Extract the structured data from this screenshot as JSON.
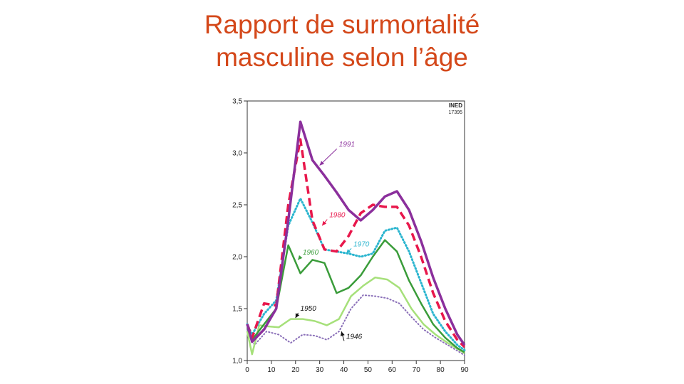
{
  "slide": {
    "title_line1": "Rapport de surmortalité",
    "title_line2": "masculine selon l’âge"
  },
  "colors": {
    "title": "#d4481a",
    "s1991": "#8b2f9c",
    "s1980": "#e8174b",
    "s1970": "#2bb5cf",
    "s1960": "#3a9c3a",
    "s1950": "#a6e07a",
    "s1946": "#8a6fb8"
  },
  "chart_data": {
    "type": "line",
    "stamp_line1": "INED",
    "stamp_line2": "17395",
    "xlim": [
      0,
      90
    ],
    "ylim": [
      1.0,
      3.5
    ],
    "xticks": [
      0,
      10,
      20,
      30,
      40,
      50,
      60,
      70,
      80,
      90
    ],
    "yticks": [
      1.0,
      1.5,
      2.0,
      2.5,
      3.0,
      3.5
    ],
    "ytick_labels": [
      "1,0",
      "1,5",
      "2,0",
      "2,5",
      "3,0",
      "3,5"
    ],
    "grid": false,
    "series": [
      {
        "name": "1991",
        "color": "#8b2f9c",
        "style": "solid",
        "width": 3.5,
        "x": [
          0,
          2,
          7,
          12,
          17,
          22,
          27,
          32,
          37,
          42,
          47,
          52,
          57,
          62,
          67,
          72,
          77,
          82,
          87,
          90
        ],
        "y": [
          1.35,
          1.18,
          1.3,
          1.5,
          2.35,
          3.3,
          2.93,
          2.78,
          2.62,
          2.45,
          2.35,
          2.45,
          2.58,
          2.63,
          2.45,
          2.15,
          1.8,
          1.5,
          1.25,
          1.15
        ]
      },
      {
        "name": "1980",
        "color": "#e8174b",
        "style": "dashed",
        "width": 3.5,
        "x": [
          0,
          2,
          7,
          12,
          17,
          22,
          27,
          32,
          37,
          42,
          47,
          52,
          57,
          62,
          67,
          72,
          77,
          82,
          87,
          90
        ],
        "y": [
          1.35,
          1.22,
          1.55,
          1.53,
          2.5,
          3.13,
          2.35,
          2.07,
          2.05,
          2.2,
          2.42,
          2.5,
          2.48,
          2.48,
          2.3,
          2.0,
          1.65,
          1.38,
          1.2,
          1.13
        ]
      },
      {
        "name": "1970",
        "color": "#2bb5cf",
        "style": "dotted",
        "width": 3,
        "x": [
          0,
          2,
          7,
          12,
          17,
          22,
          27,
          32,
          37,
          42,
          47,
          52,
          57,
          62,
          67,
          72,
          77,
          82,
          87,
          90
        ],
        "y": [
          1.35,
          1.25,
          1.45,
          1.58,
          2.3,
          2.56,
          2.33,
          2.07,
          2.05,
          2.03,
          2.0,
          2.03,
          2.25,
          2.28,
          2.05,
          1.75,
          1.45,
          1.28,
          1.15,
          1.1
        ]
      },
      {
        "name": "1960",
        "color": "#3a9c3a",
        "style": "solid",
        "width": 2.5,
        "x": [
          0,
          2,
          7,
          12,
          17,
          22,
          27,
          32,
          37,
          42,
          47,
          52,
          57,
          62,
          67,
          72,
          77,
          82,
          87,
          90
        ],
        "y": [
          1.32,
          1.2,
          1.35,
          1.5,
          2.11,
          1.84,
          1.97,
          1.94,
          1.65,
          1.7,
          1.82,
          2.0,
          2.16,
          2.05,
          1.77,
          1.55,
          1.35,
          1.22,
          1.12,
          1.08
        ]
      },
      {
        "name": "1950",
        "color": "#a6e07a",
        "style": "solid",
        "width": 2.5,
        "x": [
          0,
          2,
          5,
          8,
          13,
          18,
          23,
          28,
          33,
          38,
          43,
          48,
          53,
          58,
          63,
          68,
          73,
          78,
          83,
          88,
          90
        ],
        "y": [
          1.28,
          1.06,
          1.34,
          1.33,
          1.32,
          1.4,
          1.4,
          1.38,
          1.34,
          1.4,
          1.62,
          1.72,
          1.8,
          1.78,
          1.7,
          1.5,
          1.35,
          1.25,
          1.17,
          1.1,
          1.07
        ]
      },
      {
        "name": "1946",
        "color": "#8a6fb8",
        "style": "dotted",
        "width": 2,
        "x": [
          0,
          3,
          8,
          13,
          18,
          23,
          28,
          33,
          38,
          43,
          48,
          53,
          58,
          63,
          68,
          73,
          78,
          83,
          88,
          90
        ],
        "y": [
          1.3,
          1.15,
          1.28,
          1.25,
          1.17,
          1.25,
          1.24,
          1.2,
          1.28,
          1.5,
          1.63,
          1.62,
          1.6,
          1.55,
          1.42,
          1.3,
          1.22,
          1.15,
          1.08,
          1.05
        ]
      }
    ],
    "annotations": [
      {
        "text": "1991",
        "series": "1991",
        "label_x": 38,
        "label_y": 3.06,
        "arrow_x": 30,
        "arrow_y": 2.88
      },
      {
        "text": "1980",
        "series": "1980",
        "label_x": 34,
        "label_y": 2.38,
        "arrow_x": 31,
        "arrow_y": 2.3
      },
      {
        "text": "1970",
        "series": "1970",
        "label_x": 44,
        "label_y": 2.1,
        "arrow_x": 41,
        "arrow_y": 2.03
      },
      {
        "text": "1960",
        "series": "1960",
        "label_x": 23,
        "label_y": 2.02,
        "arrow_x": 21,
        "arrow_y": 1.97
      },
      {
        "text": "1950",
        "series": "1950",
        "label_x": 22,
        "label_y": 1.48,
        "arrow_x": 20,
        "arrow_y": 1.41
      },
      {
        "text": "1946",
        "series": "1946",
        "label_x": 41,
        "label_y": 1.21,
        "arrow_x": 39,
        "arrow_y": 1.28
      }
    ]
  }
}
